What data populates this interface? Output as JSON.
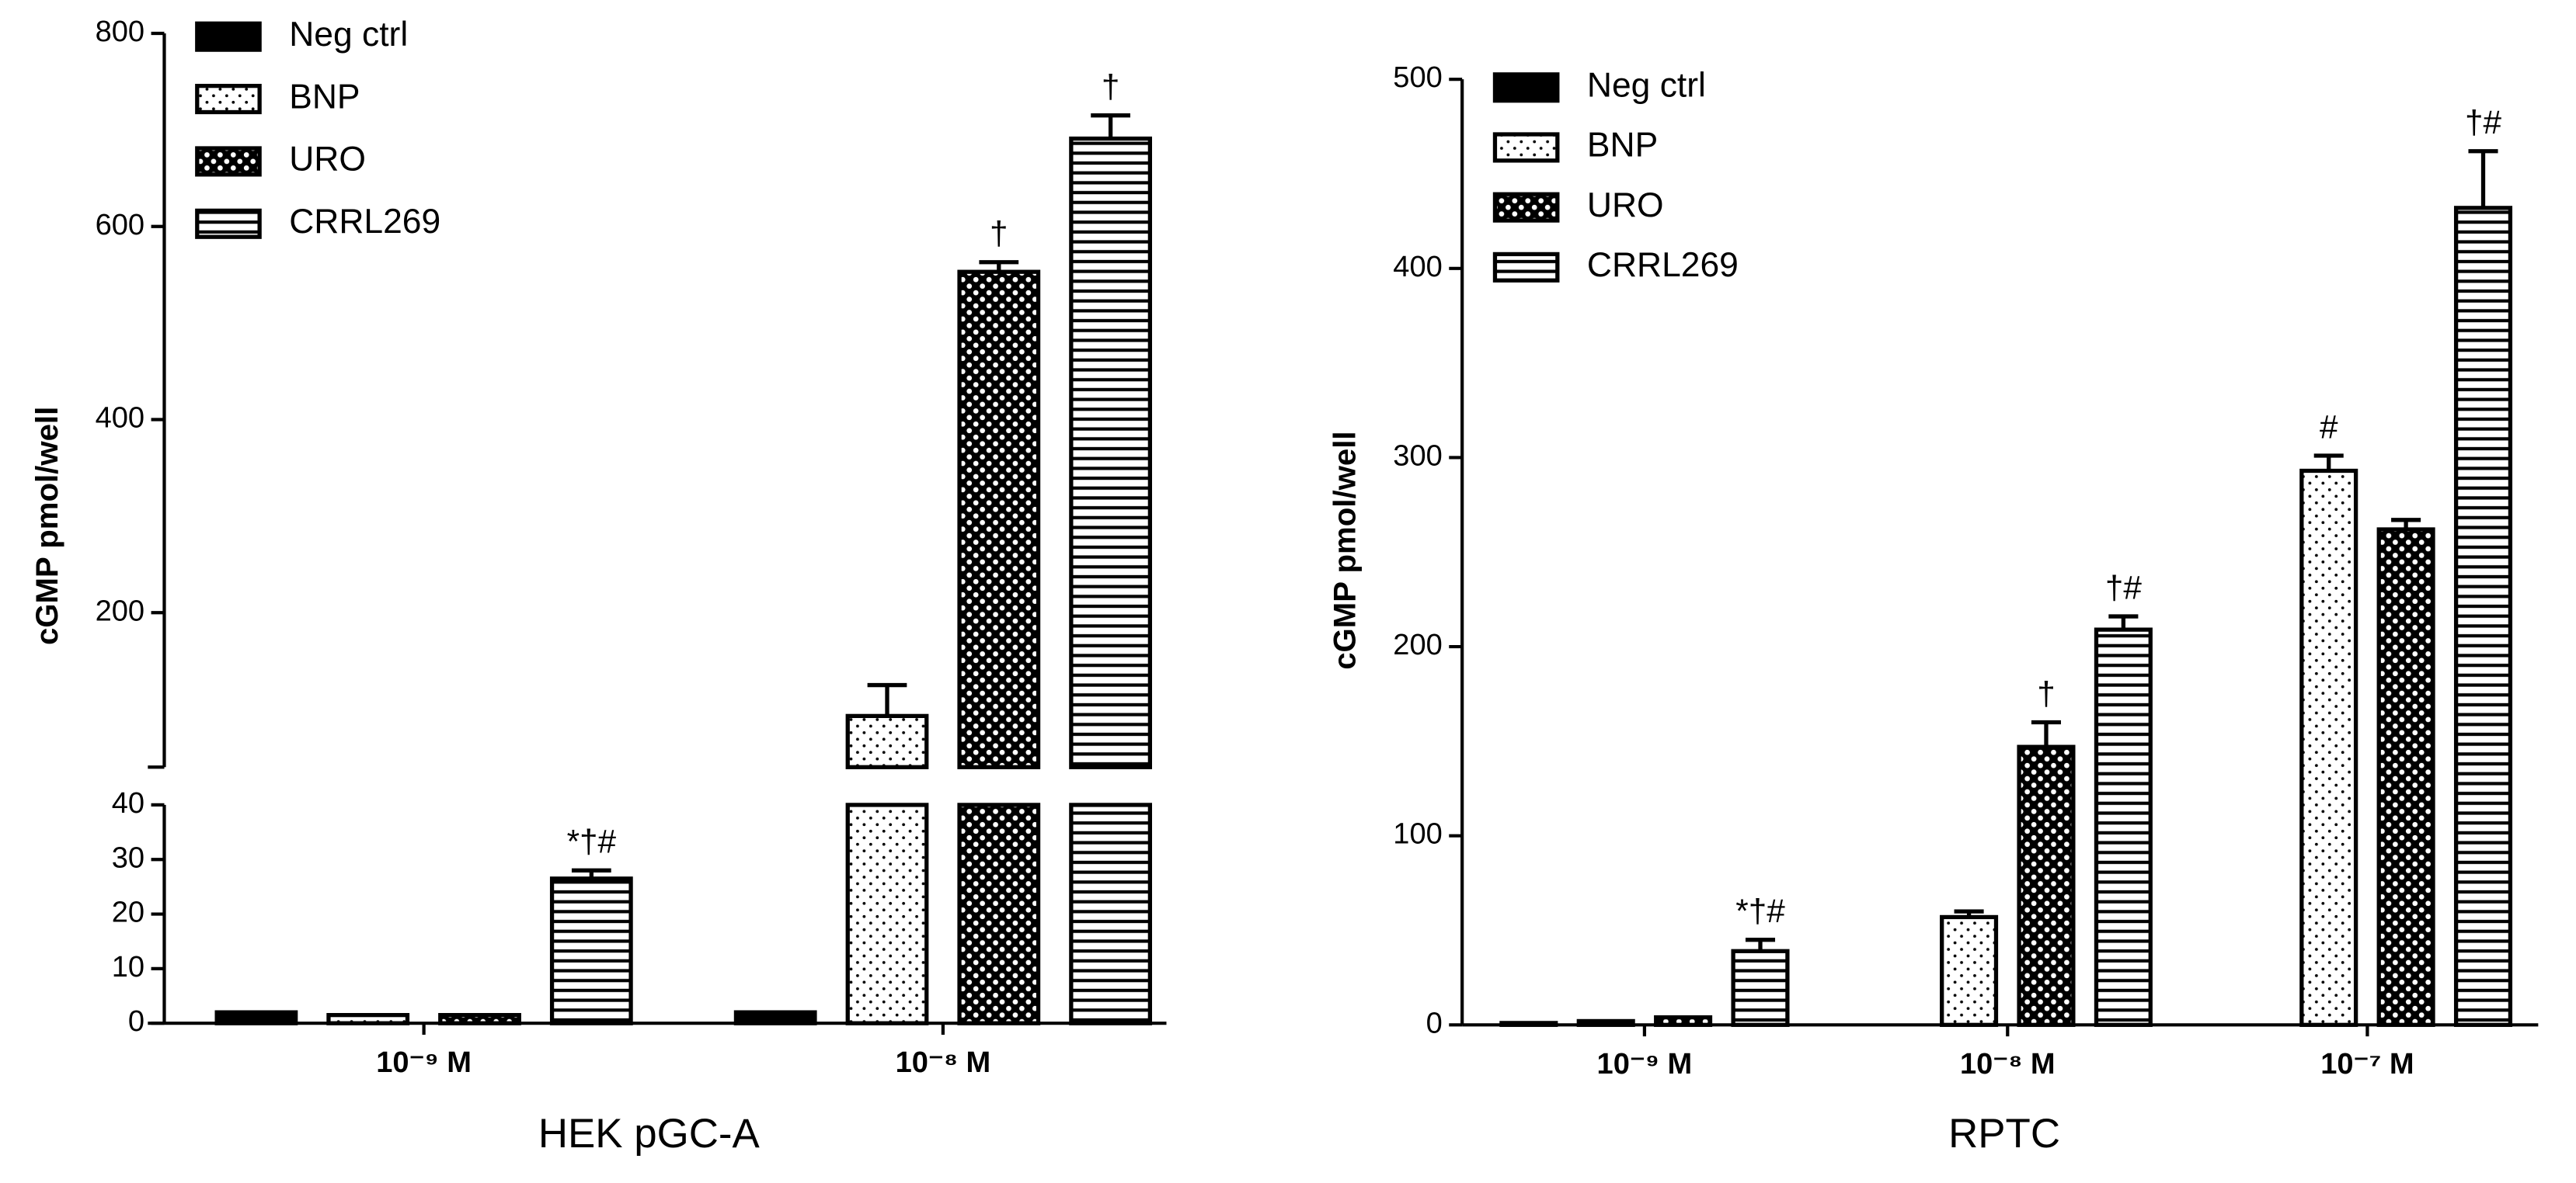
{
  "chart_data": [
    {
      "type": "bar",
      "title": "HEK pGC-A",
      "ylabel": "cGMP pmol/well",
      "categories": [
        "10⁻⁹ M",
        "10⁻⁸ M"
      ],
      "ylim": [
        0,
        40
      ],
      "yticks": [
        0,
        10,
        20,
        30,
        40
      ],
      "axis_break": {
        "ylim": [
          40,
          800
        ],
        "yticks": [
          200,
          400,
          600,
          800
        ]
      },
      "legend": "upper left",
      "series": [
        {
          "name": "Neg ctrl",
          "color": "#000000",
          "pattern": "solid",
          "values": [
            2,
            2
          ],
          "errors": [
            0,
            0
          ],
          "annotations": [
            null,
            null
          ]
        },
        {
          "name": "BNP",
          "color": "#000000",
          "pattern": "dots",
          "values": [
            1.5,
            93
          ],
          "errors": [
            0,
            32
          ],
          "annotations": [
            null,
            null
          ]
        },
        {
          "name": "URO",
          "color": "#000000",
          "pattern": "checker",
          "values": [
            1.5,
            553
          ],
          "errors": [
            0,
            10
          ],
          "annotations": [
            null,
            "†"
          ]
        },
        {
          "name": "CRRL269",
          "color": "#000000",
          "pattern": "hstripes",
          "values": [
            26.5,
            691
          ],
          "errors": [
            1.5,
            24
          ],
          "annotations": [
            "*†#",
            "†"
          ]
        }
      ]
    },
    {
      "type": "bar",
      "title": "RPTC",
      "ylabel": "cGMP pmol/well",
      "categories": [
        "10⁻⁹ M",
        "10⁻⁸ M",
        "10⁻⁷ M"
      ],
      "ylim": [
        0,
        500
      ],
      "yticks": [
        0,
        100,
        200,
        300,
        400,
        500
      ],
      "legend": "upper left",
      "series": [
        {
          "name": "Neg ctrl",
          "color": "#000000",
          "pattern": "solid",
          "values": [
            1,
            null,
            null
          ],
          "errors": [
            0,
            null,
            null
          ],
          "annotations": [
            null,
            null,
            null
          ]
        },
        {
          "name": "BNP",
          "color": "#000000",
          "pattern": "dots",
          "values": [
            2,
            57,
            293
          ],
          "errors": [
            0,
            3,
            8
          ],
          "annotations": [
            null,
            null,
            "#"
          ]
        },
        {
          "name": "URO",
          "color": "#000000",
          "pattern": "checker",
          "values": [
            4,
            147,
            262
          ],
          "errors": [
            0,
            13,
            5
          ],
          "annotations": [
            null,
            "†",
            null
          ]
        },
        {
          "name": "CRRL269",
          "color": "#000000",
          "pattern": "hstripes",
          "values": [
            39,
            209,
            432
          ],
          "errors": [
            6,
            7,
            30
          ],
          "annotations": [
            "*†#",
            "†#",
            "†#"
          ]
        }
      ]
    }
  ]
}
